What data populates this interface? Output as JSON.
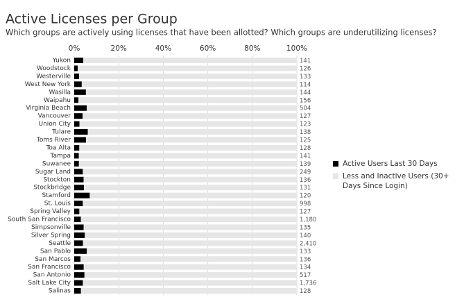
{
  "chart_data": {
    "type": "stacked-bar-100",
    "orientation": "horizontal",
    "title": "Active Licenses per Group",
    "subtitle": "Which groups are actively using licenses that have been allotted? Which groups are underutilizing licenses?",
    "categories": [
      "Yukon",
      "Woodstock",
      "Westerville",
      "West New York",
      "Wasilla",
      "Waipahu",
      "Virginia Beach",
      "Vancouver",
      "Union City",
      "Tulare",
      "Toms River",
      "Toa Alta",
      "Tampa",
      "Suwanee",
      "Sugar Land",
      "Stockton",
      "Stockbridge",
      "Stamford",
      "St. Louis",
      "Spring Valley",
      "South San Francisco",
      "Simpsonville",
      "Silver Spring",
      "Seattle",
      "San Pablo",
      "San Marcos",
      "San Francisco",
      "San Antonio",
      "Salt Lake City",
      "Salinas"
    ],
    "series": [
      {
        "name": "Active Users Last 30 Days",
        "color": "#000000",
        "values": [
          6,
          2,
          3,
          4,
          8,
          3,
          30,
          5,
          3,
          9,
          7,
          3,
          3,
          3,
          10,
          6,
          6,
          9,
          40,
          3,
          36,
          6,
          7,
          99,
          8,
          4,
          6,
          25,
          70,
          4
        ]
      },
      {
        "name": "Less and Inactive Users (30+ Days Since Login)",
        "color": "#e6e6e6",
        "values": [
          141,
          126,
          133,
          114,
          144,
          156,
          504,
          127,
          123,
          138,
          125,
          128,
          141,
          139,
          249,
          136,
          131,
          120,
          998,
          127,
          1180,
          135,
          140,
          2410,
          133,
          136,
          134,
          517,
          1736,
          128
        ],
        "value_labels": [
          "141",
          "126",
          "133",
          "114",
          "144",
          "156",
          "504",
          "127",
          "123",
          "138",
          "125",
          "128",
          "141",
          "139",
          "249",
          "136",
          "131",
          "120",
          "998",
          "127",
          "1,180",
          "135",
          "140",
          "2,410",
          "133",
          "136",
          "134",
          "517",
          "1,736",
          "128"
        ]
      }
    ],
    "xlim": [
      0,
      100
    ],
    "xticks": [
      {
        "value": 0,
        "label": "0%"
      },
      {
        "value": 20,
        "label": "20%"
      },
      {
        "value": 40,
        "label": "40%"
      },
      {
        "value": 60,
        "label": "60%"
      },
      {
        "value": 80,
        "label": "80%"
      },
      {
        "value": 100,
        "label": "100%"
      }
    ],
    "grid": true
  }
}
